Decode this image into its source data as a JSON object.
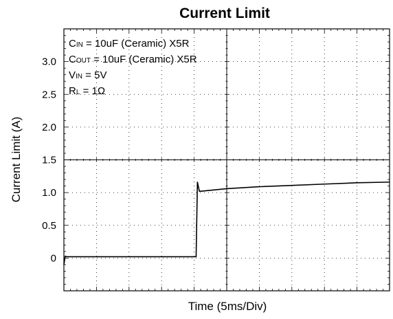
{
  "chart_data": {
    "type": "line",
    "title": "Current  Limit",
    "xlabel": "Time  (5ms/Div)",
    "ylabel": "Current  Limit (A)",
    "x_unit": "ms",
    "x_per_div_ms": 5,
    "x_divisions": 10,
    "xlim": [
      0,
      50
    ],
    "ylim": [
      -0.5,
      3.5
    ],
    "y_ticks": [
      {
        "value": 0,
        "label": "0"
      },
      {
        "value": 0.5,
        "label": "0.5"
      },
      {
        "value": 1.0,
        "label": "1.0"
      },
      {
        "value": 1.5,
        "label": "1.5"
      },
      {
        "value": 2.0,
        "label": "2.0"
      },
      {
        "value": 2.5,
        "label": "2.5"
      },
      {
        "value": 3.0,
        "label": "3.0"
      }
    ],
    "grid": true,
    "grid_style": "dotted",
    "conditions": [
      {
        "main": "C",
        "sub": "IN",
        "rest": " = 10uF (Ceramic) X5R"
      },
      {
        "main": "C",
        "sub": "OUT",
        "rest": " = 10uF (Ceramic) X5R"
      },
      {
        "main": "V",
        "sub": "IN",
        "rest": " = 5V"
      },
      {
        "main": "R",
        "sub": "L",
        "rest": " = 1Ω"
      }
    ],
    "series": [
      {
        "color": "#000000",
        "x": [
          0,
          0.2,
          0.4,
          5,
          10,
          15,
          20,
          20.3,
          20.5,
          20.8,
          21,
          25,
          30,
          35,
          40,
          45,
          50
        ],
        "y": [
          -0.1,
          0.03,
          0.02,
          0.02,
          0.02,
          0.02,
          0.02,
          0.02,
          1.16,
          1.02,
          1.02,
          1.06,
          1.09,
          1.11,
          1.13,
          1.15,
          1.16
        ]
      }
    ]
  }
}
